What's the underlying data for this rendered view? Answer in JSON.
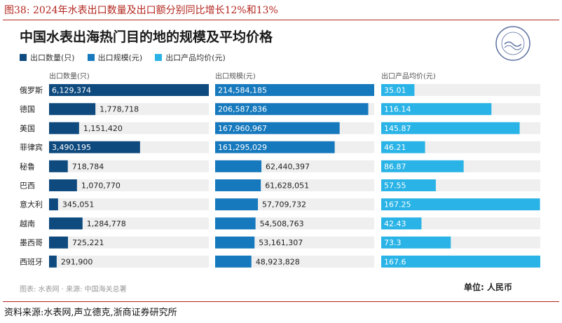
{
  "figure_caption": "图38:  2024年水表出口数量及出口额分别同比增长12%和13%",
  "source_line": "资料来源:水表网,声立德克,浙商证券研究所",
  "colors": {
    "qty": "#0e4a7e",
    "value": "#1679bd",
    "price": "#29b3e6",
    "track": "#efefef",
    "caption_red": "#b3261e"
  },
  "chart_data": {
    "type": "bar",
    "title": "中国水表出海热门目的地的规模及平均价格",
    "legend": [
      "出口数量(只)",
      "出口规模(元)",
      "出口产品均价(元)"
    ],
    "categories": [
      "俄罗斯",
      "德国",
      "美国",
      "菲律宾",
      "秘鲁",
      "巴西",
      "意大利",
      "越南",
      "墨西哥",
      "西班牙"
    ],
    "series": [
      {
        "name": "出口数量(只)",
        "values": [
          6129374,
          1778718,
          1151420,
          3490195,
          718784,
          1070770,
          345051,
          1284778,
          725221,
          291900
        ],
        "labels": [
          "6,129,374",
          "1,778,718",
          "1,151,420",
          "3,490,195",
          "718,784",
          "1,070,770",
          "345,051",
          "1,284,778",
          "725,221",
          "291,900"
        ]
      },
      {
        "name": "出口规模(元)",
        "values": [
          214584185,
          206587836,
          167960967,
          161295029,
          62440397,
          61628051,
          57709732,
          54508763,
          53161307,
          48923828
        ],
        "labels": [
          "214,584,185",
          "206,587,836",
          "167,960,967",
          "161,295,029",
          "62,440,397",
          "61,628,051",
          "57,709,732",
          "54,508,763",
          "53,161,307",
          "48,923,828"
        ]
      },
      {
        "name": "出口产品均价(元)",
        "values": [
          35.01,
          116.14,
          145.87,
          46.21,
          86.87,
          57.55,
          167.25,
          42.43,
          73.3,
          167.6
        ],
        "labels": [
          "35.01",
          "116.14",
          "145.87",
          "46.21",
          "86.87",
          "57.55",
          "167.25",
          "42.43",
          "73.3",
          "167.6"
        ]
      }
    ],
    "panel_headers": [
      "出口数量(只)",
      "出口规模(元)",
      "出口产品均价(元)"
    ],
    "source_note": "图表: 水表网 · 来源: 中国海关总署",
    "unit_note": "单位: 人民币"
  }
}
